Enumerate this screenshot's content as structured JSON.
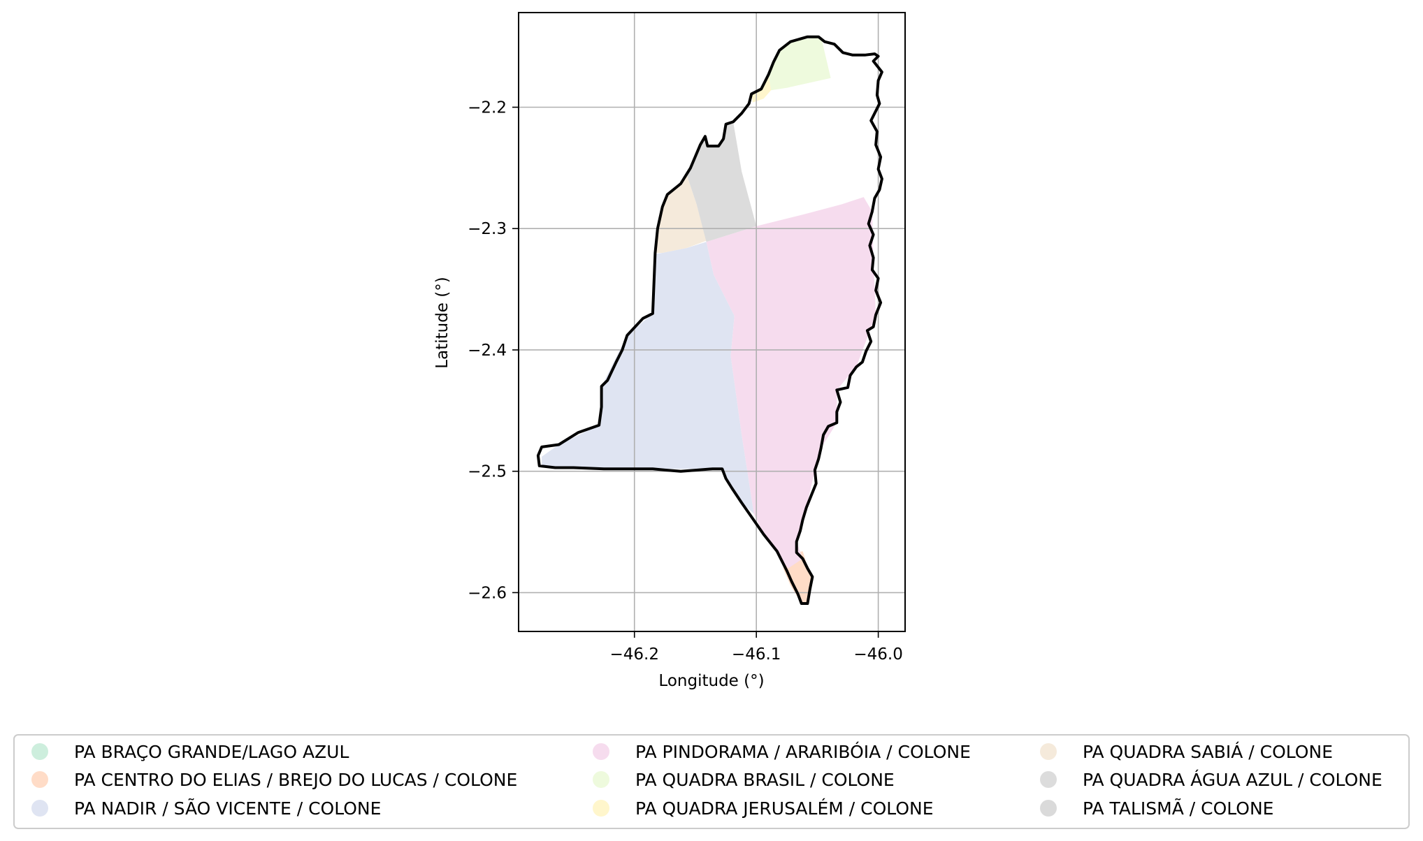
{
  "map": {
    "xlabel": "Longitude (°)",
    "ylabel": "Latitude (°)",
    "xlim": [
      -46.295,
      -45.978
    ],
    "ylim": [
      -2.632,
      -2.122
    ],
    "xticks": [
      {
        "value": -46.2,
        "label": "−46.2"
      },
      {
        "value": -46.1,
        "label": "−46.1"
      },
      {
        "value": -46.0,
        "label": "−46.0"
      }
    ],
    "yticks": [
      {
        "value": -2.2,
        "label": "−2.2"
      },
      {
        "value": -2.3,
        "label": "−2.3"
      },
      {
        "value": -2.4,
        "label": "−2.4"
      },
      {
        "value": -2.5,
        "label": "−2.5"
      },
      {
        "value": -2.6,
        "label": "−2.6"
      }
    ],
    "grid": true,
    "boundary_color": "#000000",
    "boundary": [
      [
        -46.278,
        -2.4955
      ],
      [
        -46.279,
        -2.487
      ],
      [
        -46.276,
        -2.48
      ],
      [
        -46.262,
        -2.478
      ],
      [
        -46.246,
        -2.468
      ],
      [
        -46.229,
        -2.462
      ],
      [
        -46.227,
        -2.447
      ],
      [
        -46.227,
        -2.43
      ],
      [
        -46.222,
        -2.425
      ],
      [
        -46.215,
        -2.41
      ],
      [
        -46.21,
        -2.4
      ],
      [
        -46.206,
        -2.388
      ],
      [
        -46.193,
        -2.374
      ],
      [
        -46.185,
        -2.37
      ],
      [
        -46.183,
        -2.32
      ],
      [
        -46.181,
        -2.3
      ],
      [
        -46.177,
        -2.282
      ],
      [
        -46.173,
        -2.272
      ],
      [
        -46.162,
        -2.263
      ],
      [
        -46.154,
        -2.25
      ],
      [
        -46.146,
        -2.231
      ],
      [
        -46.142,
        -2.224
      ],
      [
        -46.14,
        -2.232
      ],
      [
        -46.131,
        -2.232
      ],
      [
        -46.127,
        -2.226
      ],
      [
        -46.125,
        -2.214
      ],
      [
        -46.119,
        -2.212
      ],
      [
        -46.112,
        -2.205
      ],
      [
        -46.106,
        -2.197
      ],
      [
        -46.104,
        -2.189
      ],
      [
        -46.096,
        -2.185
      ],
      [
        -46.09,
        -2.173
      ],
      [
        -46.086,
        -2.163
      ],
      [
        -46.081,
        -2.153
      ],
      [
        -46.072,
        -2.146
      ],
      [
        -46.058,
        -2.142
      ],
      [
        -46.049,
        -2.142
      ],
      [
        -46.044,
        -2.146
      ],
      [
        -46.036,
        -2.148
      ],
      [
        -46.029,
        -2.155
      ],
      [
        -46.021,
        -2.157
      ],
      [
        -46.011,
        -2.157
      ],
      [
        -46.003,
        -2.156
      ],
      [
        -46.0,
        -2.158
      ],
      [
        -46.004,
        -2.162
      ],
      [
        -45.997,
        -2.171
      ],
      [
        -46.0,
        -2.178
      ],
      [
        -46.001,
        -2.19
      ],
      [
        -45.999,
        -2.197
      ],
      [
        -46.006,
        -2.211
      ],
      [
        -46.001,
        -2.22
      ],
      [
        -46.002,
        -2.231
      ],
      [
        -45.998,
        -2.241
      ],
      [
        -46.0,
        -2.251
      ],
      [
        -45.997,
        -2.259
      ],
      [
        -45.999,
        -2.268
      ],
      [
        -46.003,
        -2.275
      ],
      [
        -46.005,
        -2.286
      ],
      [
        -46.008,
        -2.296
      ],
      [
        -46.004,
        -2.305
      ],
      [
        -46.007,
        -2.314
      ],
      [
        -46.004,
        -2.324
      ],
      [
        -46.005,
        -2.334
      ],
      [
        -46.0,
        -2.341
      ],
      [
        -46.002,
        -2.351
      ],
      [
        -45.998,
        -2.361
      ],
      [
        -46.002,
        -2.371
      ],
      [
        -46.004,
        -2.381
      ],
      [
        -46.009,
        -2.384
      ],
      [
        -46.006,
        -2.393
      ],
      [
        -46.01,
        -2.401
      ],
      [
        -46.013,
        -2.41
      ],
      [
        -46.018,
        -2.414
      ],
      [
        -46.023,
        -2.421
      ],
      [
        -46.025,
        -2.431
      ],
      [
        -46.034,
        -2.433
      ],
      [
        -46.031,
        -2.443
      ],
      [
        -46.034,
        -2.451
      ],
      [
        -46.034,
        -2.46
      ],
      [
        -46.041,
        -2.463
      ],
      [
        -46.045,
        -2.47
      ],
      [
        -46.047,
        -2.481
      ],
      [
        -46.049,
        -2.49
      ],
      [
        -46.052,
        -2.499
      ],
      [
        -46.051,
        -2.51
      ],
      [
        -46.055,
        -2.52
      ],
      [
        -46.059,
        -2.53
      ],
      [
        -46.062,
        -2.54
      ],
      [
        -46.064,
        -2.549
      ],
      [
        -46.067,
        -2.558
      ],
      [
        -46.067,
        -2.567
      ],
      [
        -46.062,
        -2.572
      ],
      [
        -46.058,
        -2.58
      ],
      [
        -46.054,
        -2.587
      ],
      [
        -46.056,
        -2.597
      ],
      [
        -46.058,
        -2.609
      ],
      [
        -46.063,
        -2.609
      ],
      [
        -46.066,
        -2.601
      ],
      [
        -46.071,
        -2.591
      ],
      [
        -46.075,
        -2.582
      ],
      [
        -46.083,
        -2.566
      ],
      [
        -46.094,
        -2.552
      ],
      [
        -46.103,
        -2.539
      ],
      [
        -46.112,
        -2.526
      ],
      [
        -46.12,
        -2.514
      ],
      [
        -46.125,
        -2.506
      ],
      [
        -46.128,
        -2.498
      ],
      [
        -46.136,
        -2.498
      ],
      [
        -46.148,
        -2.499
      ],
      [
        -46.162,
        -2.5
      ],
      [
        -46.175,
        -2.499
      ],
      [
        -46.185,
        -2.498
      ],
      [
        -46.2,
        -2.498
      ],
      [
        -46.225,
        -2.498
      ],
      [
        -46.25,
        -2.497
      ],
      [
        -46.265,
        -2.497
      ]
    ],
    "regions": [
      {
        "name": "PA BRAÇO GRANDE/LAGO AZUL",
        "color": "#cdeedd",
        "polygon": [
          [
            -46.226,
            -2.428
          ],
          [
            -46.218,
            -2.424
          ],
          [
            -46.216,
            -2.452
          ],
          [
            -46.226,
            -2.455
          ]
        ]
      },
      {
        "name": "PA CENTRO DO ELIAS / BREJO DO LUCAS / COLONE",
        "color": "#ffdcc7",
        "polygon": [
          [
            -46.074,
            -2.568
          ],
          [
            -46.062,
            -2.566
          ],
          [
            -46.055,
            -2.588
          ],
          [
            -46.058,
            -2.609
          ],
          [
            -46.063,
            -2.609
          ],
          [
            -46.072,
            -2.594
          ],
          [
            -46.078,
            -2.58
          ]
        ]
      },
      {
        "name": "PA NADIR / SÃO VICENTE / COLONE",
        "color": "#dfe4f2",
        "polygon": [
          [
            -46.276,
            -2.488
          ],
          [
            -46.262,
            -2.478
          ],
          [
            -46.229,
            -2.462
          ],
          [
            -46.227,
            -2.43
          ],
          [
            -46.206,
            -2.388
          ],
          [
            -46.185,
            -2.37
          ],
          [
            -46.183,
            -2.321
          ],
          [
            -46.177,
            -2.32
          ],
          [
            -46.157,
            -2.316
          ],
          [
            -46.141,
            -2.311
          ],
          [
            -46.135,
            -2.338
          ],
          [
            -46.118,
            -2.372
          ],
          [
            -46.121,
            -2.405
          ],
          [
            -46.112,
            -2.47
          ],
          [
            -46.102,
            -2.535
          ],
          [
            -46.112,
            -2.526
          ],
          [
            -46.128,
            -2.498
          ],
          [
            -46.2,
            -2.498
          ],
          [
            -46.276,
            -2.497
          ]
        ]
      },
      {
        "name": "PA PINDORAMA / ARARIBÓIA / COLONE",
        "color": "#f6dcee",
        "polygon": [
          [
            -46.141,
            -2.311
          ],
          [
            -46.1,
            -2.298
          ],
          [
            -46.06,
            -2.288
          ],
          [
            -46.03,
            -2.28
          ],
          [
            -46.012,
            -2.274
          ],
          [
            -46.005,
            -2.286
          ],
          [
            -46.004,
            -2.324
          ],
          [
            -46.002,
            -2.371
          ],
          [
            -46.018,
            -2.414
          ],
          [
            -46.034,
            -2.433
          ],
          [
            -46.034,
            -2.46
          ],
          [
            -46.047,
            -2.481
          ],
          [
            -46.052,
            -2.499
          ],
          [
            -46.059,
            -2.53
          ],
          [
            -46.067,
            -2.558
          ],
          [
            -46.062,
            -2.572
          ],
          [
            -46.074,
            -2.58
          ],
          [
            -46.094,
            -2.552
          ],
          [
            -46.102,
            -2.535
          ],
          [
            -46.112,
            -2.47
          ],
          [
            -46.121,
            -2.405
          ],
          [
            -46.118,
            -2.372
          ],
          [
            -46.135,
            -2.338
          ]
        ]
      },
      {
        "name": "PA QUADRA BRASIL  / COLONE",
        "color": "#eefadd",
        "polygon": [
          [
            -46.09,
            -2.173
          ],
          [
            -46.081,
            -2.153
          ],
          [
            -46.072,
            -2.146
          ],
          [
            -46.049,
            -2.142
          ],
          [
            -46.046,
            -2.146
          ],
          [
            -46.039,
            -2.176
          ],
          [
            -46.075,
            -2.184
          ],
          [
            -46.088,
            -2.186
          ]
        ]
      },
      {
        "name": "PA QUADRA JERUSALÉM / COLONE",
        "color": "#fff6cc",
        "polygon": [
          [
            -46.104,
            -2.189
          ],
          [
            -46.096,
            -2.185
          ],
          [
            -46.09,
            -2.173
          ],
          [
            -46.088,
            -2.186
          ],
          [
            -46.094,
            -2.193
          ],
          [
            -46.103,
            -2.196
          ]
        ]
      },
      {
        "name": "PA QUADRA SABIÁ / COLONE",
        "color": "#f5eadb",
        "polygon": [
          [
            -46.183,
            -2.32
          ],
          [
            -46.181,
            -2.3
          ],
          [
            -46.177,
            -2.282
          ],
          [
            -46.173,
            -2.272
          ],
          [
            -46.162,
            -2.263
          ],
          [
            -46.157,
            -2.256
          ],
          [
            -46.149,
            -2.28
          ],
          [
            -46.141,
            -2.31
          ],
          [
            -46.157,
            -2.316
          ],
          [
            -46.177,
            -2.32
          ]
        ]
      },
      {
        "name": "PA QUADRA ÁGUA AZUL / COLONE",
        "color": "#dcdcdc",
        "polygon": [
          [
            -46.157,
            -2.256
          ],
          [
            -46.146,
            -2.231
          ],
          [
            -46.142,
            -2.224
          ],
          [
            -46.14,
            -2.232
          ],
          [
            -46.131,
            -2.232
          ],
          [
            -46.127,
            -2.226
          ],
          [
            -46.125,
            -2.214
          ],
          [
            -46.119,
            -2.212
          ],
          [
            -46.112,
            -2.253
          ],
          [
            -46.1,
            -2.298
          ],
          [
            -46.141,
            -2.311
          ],
          [
            -46.149,
            -2.28
          ]
        ]
      },
      {
        "name": "PA TALISMÃ / COLONE",
        "color": "#dadada",
        "polygon": []
      }
    ]
  }
}
